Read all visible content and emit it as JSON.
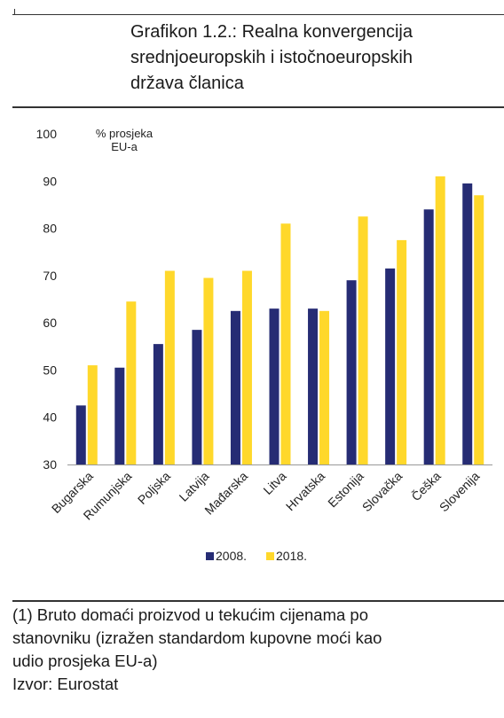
{
  "title_lines": [
    "Grafikon 1.2.:  Realna konvergencija",
    "srednjoeuropskih i istočnoeuropskih",
    "država članica"
  ],
  "colors": {
    "2008": "#262c74",
    "2018": "#ffd82b"
  },
  "chart_data": {
    "type": "bar",
    "ylabel_lines": [
      "% prosjeka",
      "EU-a"
    ],
    "ylim": [
      30,
      100
    ],
    "yticks": [
      30,
      40,
      50,
      60,
      70,
      80,
      90,
      100
    ],
    "grid": false,
    "legend_position": "bottom",
    "categories": [
      "Bugarska",
      "Rumunjska",
      "Poljska",
      "Latvija",
      "Mađarska",
      "Litva",
      "Hrvatska",
      "Estonija",
      "Slovačka",
      "Češka",
      "Slovenija"
    ],
    "series": [
      {
        "name": "2008.",
        "values": [
          42.5,
          50.5,
          55.5,
          58.5,
          62.5,
          63,
          63,
          69,
          71.5,
          84,
          89.5
        ]
      },
      {
        "name": "2018.",
        "values": [
          51,
          64.5,
          71,
          69.5,
          71,
          81,
          62.5,
          82.5,
          77.5,
          91,
          87
        ]
      }
    ]
  },
  "footnote_lines": [
    "(1) Bruto domaći proizvod u tekućim cijenama po",
    "stanovniku (izražen standardom kupovne moći kao",
    "udio prosjeka EU-a)",
    "Izvor: Eurostat"
  ]
}
